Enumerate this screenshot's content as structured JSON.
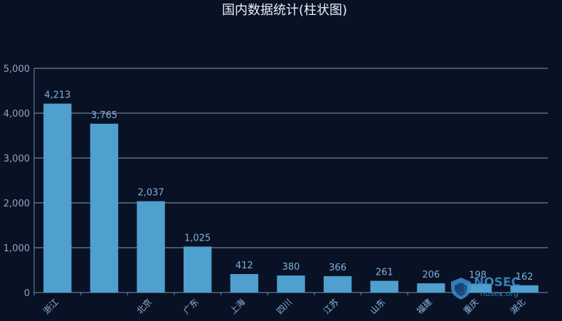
{
  "chart_data": {
    "type": "bar",
    "title": "国内数据统计(柱状图)",
    "categories": [
      "浙江",
      "",
      "北京",
      "广东",
      "上海",
      "四川",
      "江苏",
      "山东",
      "福建",
      "重庆",
      "湖北"
    ],
    "values": [
      4213,
      3765,
      2037,
      1025,
      412,
      380,
      366,
      261,
      206,
      198,
      162
    ],
    "value_labels": [
      "4,213",
      "3,765",
      "2,037",
      "1,025",
      "412",
      "380",
      "366",
      "261",
      "206",
      "198",
      "162"
    ],
    "yticks": [
      "0",
      "1,000",
      "2,000",
      "3,000",
      "4,000",
      "5,000"
    ],
    "ylim": [
      0,
      5000
    ],
    "grid": true,
    "legend": "none",
    "colors": {
      "bar": "#4f9fcf",
      "background": "#081224",
      "grid": "#9fb7cf",
      "text": "#8fa6c2"
    }
  },
  "watermark": {
    "brand": "NOSEC",
    "url": "nosec.org",
    "icon": "shield-icon"
  }
}
